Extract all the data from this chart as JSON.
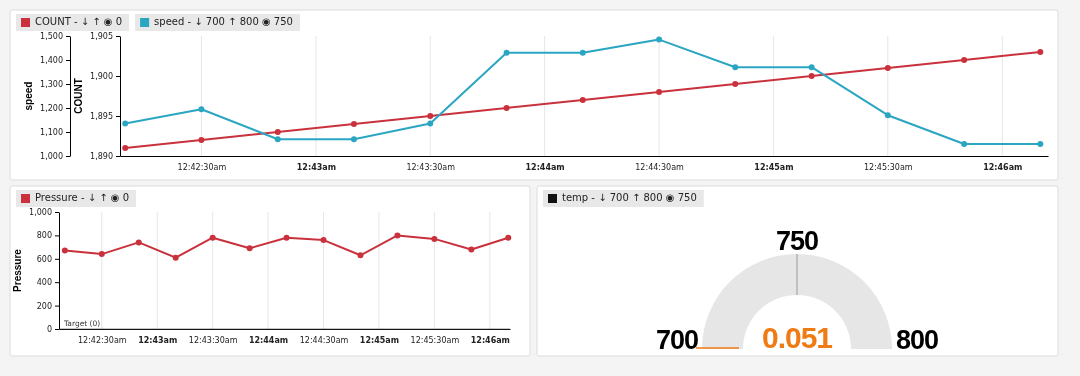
{
  "chart_data": [
    {
      "type": "line",
      "ylabel": "COUNT",
      "y2label": "speed",
      "x": [
        0.70278,
        0.70833,
        0.71389,
        0.71944,
        0.725,
        0.73056,
        0.73611,
        0.74167,
        0.74722,
        0.75278,
        0.75833,
        0.76389,
        0.76944
      ],
      "series": [
        {
          "name": "COUNT - ↓ ↑ ◉ 0",
          "color": "#c9323d",
          "values": [
            1891,
            1892,
            1893,
            1894,
            1895,
            1896,
            1897,
            1898,
            1899,
            1900,
            1901,
            1902,
            1903
          ]
        },
        {
          "name": "speed - ↓ 700 ↑ 800 ◉ 750",
          "color": "#2ba6c2",
          "axis": "y2",
          "values": [
            1135,
            1195,
            1070,
            1070,
            1135,
            1430,
            1430,
            1485,
            1370,
            1370,
            1170,
            1050,
            1050
          ]
        }
      ],
      "xlim": [
        0.7024,
        0.77
      ],
      "xticks": [
        {
          "value": 0.70833,
          "label": "12:42:30am"
        },
        {
          "value": 0.71667,
          "label": "12:43am"
        },
        {
          "value": 0.725,
          "label": "12:43:30am"
        },
        {
          "value": 0.73333,
          "label": "12:44am"
        },
        {
          "value": 0.74167,
          "label": "12:44:30am"
        },
        {
          "value": 0.75,
          "label": "12:45am"
        },
        {
          "value": 0.75833,
          "label": "12:45:30am"
        },
        {
          "value": 0.76667,
          "label": "12:46am"
        }
      ],
      "ylim": [
        1890,
        1905
      ],
      "yticks": [
        {
          "value": 1890,
          "label": "1,890"
        },
        {
          "value": 1895,
          "label": "1,895"
        },
        {
          "value": 1900,
          "label": "1,900"
        },
        {
          "value": 1905,
          "label": "1,905"
        }
      ],
      "y2lim": [
        1000,
        1500
      ],
      "y2ticks": [
        {
          "value": 1000,
          "label": "1,000"
        },
        {
          "value": 1100,
          "label": "1,100"
        },
        {
          "value": 1200,
          "label": "1,200"
        },
        {
          "value": 1300,
          "label": "1,300"
        },
        {
          "value": 1400,
          "label": "1,400"
        },
        {
          "value": 1500,
          "label": "1,500"
        }
      ],
      "grid": "x",
      "legend": "top left",
      "marker": "circle",
      "line_style": "solid"
    },
    {
      "type": "line",
      "ylabel": "Pressure",
      "x": [
        0.70278,
        0.70833,
        0.71389,
        0.71944,
        0.725,
        0.73056,
        0.73611,
        0.74167,
        0.74722,
        0.75278,
        0.75833,
        0.76389,
        0.76944
      ],
      "series": [
        {
          "name": "Pressure - ↓ ↑ ◉ 0",
          "color": "#c9323d",
          "values": [
            670,
            640,
            740,
            610,
            780,
            690,
            780,
            760,
            630,
            800,
            770,
            680,
            780
          ]
        }
      ],
      "xlim": [
        0.7019,
        0.7697
      ],
      "xticks": [
        {
          "value": 0.70833,
          "label": "12:42:30am"
        },
        {
          "value": 0.71667,
          "label": "12:43am"
        },
        {
          "value": 0.725,
          "label": "12:43:30am"
        },
        {
          "value": 0.73333,
          "label": "12:44am"
        },
        {
          "value": 0.74167,
          "label": "12:44:30am"
        },
        {
          "value": 0.75,
          "label": "12:45am"
        },
        {
          "value": 0.75833,
          "label": "12:45:30am"
        },
        {
          "value": 0.76667,
          "label": "12:46am"
        }
      ],
      "ylim": [
        0,
        1000
      ],
      "yticks": [
        0,
        200,
        400,
        600,
        800,
        {
          "value": 1000,
          "label": "1,000"
        }
      ],
      "ref_lines": [
        {
          "axis": "y",
          "value": 0,
          "label": "Target (0)",
          "color": "#444444"
        }
      ],
      "grid": "x",
      "legend": "top left",
      "marker": "circle",
      "line_style": "solid"
    },
    {
      "type": "other",
      "series": [
        {
          "name": "temp - ↓ 700 ↑ 800 ◉ 750",
          "color": "#111111"
        }
      ],
      "annotations": [
        "750",
        "700",
        "800",
        "0.051"
      ],
      "legend": "top left"
    }
  ]
}
